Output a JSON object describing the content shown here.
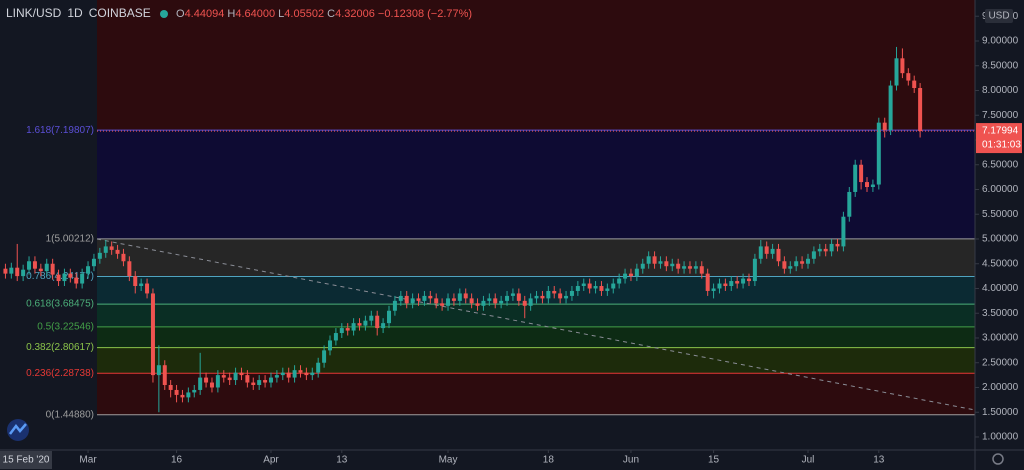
{
  "chart_data": {
    "type": "candlestick",
    "legend": {
      "symbol": "LINK/USD",
      "interval": "1D",
      "exchange": "COINBASE",
      "open_label": "O",
      "open": "4.44094",
      "high_label": "H",
      "high": "4.64000",
      "low_label": "L",
      "low": "4.05502",
      "close_label": "C",
      "close": "4.32006",
      "change": "−0.12308 (−2.77%)"
    },
    "currency": "USD",
    "date_marker": "15 Feb '20",
    "last_price": 7.17994,
    "countdown": "01:31:03",
    "up_color": "#26a69a",
    "down_color": "#ef5350",
    "ylim": [
      0.737,
      9.828
    ],
    "yticks": [
      {
        "value": 1,
        "label": "1.00000"
      },
      {
        "value": 1.5,
        "label": "1.50000"
      },
      {
        "value": 2,
        "label": "2.00000"
      },
      {
        "value": 2.5,
        "label": "2.50000"
      },
      {
        "value": 3,
        "label": "3.00000"
      },
      {
        "value": 3.5,
        "label": "3.50000"
      },
      {
        "value": 4,
        "label": "4.00000"
      },
      {
        "value": 4.5,
        "label": "4.50000"
      },
      {
        "value": 5,
        "label": "5.00000"
      },
      {
        "value": 5.5,
        "label": "5.50000"
      },
      {
        "value": 6,
        "label": "6.00000"
      },
      {
        "value": 6.5,
        "label": "6.50000"
      },
      {
        "value": 7,
        "label": "7.00000"
      },
      {
        "value": 7.5,
        "label": "7.50000"
      },
      {
        "value": 8,
        "label": "8.00000"
      },
      {
        "value": 8.5,
        "label": "8.50000"
      },
      {
        "value": 9,
        "label": "9.00000"
      },
      {
        "value": 9.5,
        "label": "9.50000"
      }
    ],
    "xlim": [
      -0.92,
      164.3
    ],
    "xticks": [
      {
        "value": 14,
        "label": "Mar"
      },
      {
        "value": 29,
        "label": "16"
      },
      {
        "value": 45,
        "label": "Apr"
      },
      {
        "value": 57,
        "label": "13"
      },
      {
        "value": 75,
        "label": "May"
      },
      {
        "value": 92,
        "label": "18"
      },
      {
        "value": 106,
        "label": "Jun"
      },
      {
        "value": 120,
        "label": "15"
      },
      {
        "value": 136,
        "label": "Jul"
      },
      {
        "value": 148,
        "label": "13"
      }
    ],
    "fib_above_fill": "#2d0b0e",
    "fib_levels": [
      {
        "label": "1.618(7.19807)",
        "value": 7.19807,
        "color": "#5b4fd6",
        "fill": "#0e0b33"
      },
      {
        "label": "1(5.00212)",
        "value": 5.00212,
        "color": "#9e9e9e",
        "fill": "#262626"
      },
      {
        "label": "0.786(4.24177)",
        "value": 4.24177,
        "color": "#4fa3c0",
        "fill": "#0b2a33"
      },
      {
        "label": "0.618(3.68475)",
        "value": 3.68475,
        "color": "#4caf7a",
        "fill": "#0a2e24"
      },
      {
        "label": "0.5(3.22546)",
        "value": 3.22546,
        "color": "#43a047",
        "fill": "#0d2b14"
      },
      {
        "label": "0.382(2.80617)",
        "value": 2.80617,
        "color": "#8bc34a",
        "fill": "#1d2b0b"
      },
      {
        "label": "0.236(2.28738)",
        "value": 2.28738,
        "color": "#e53935",
        "fill": "#2d0b0e"
      },
      {
        "label": "0(1.44880)",
        "value": 1.4488,
        "color": "#9e9e9e",
        "fill": null
      }
    ],
    "open": [
      4.4,
      4.3,
      4.42,
      4.25,
      4.38,
      4.55,
      4.4,
      4.35,
      4.5,
      4.28,
      4.15,
      4.3,
      4.22,
      4.1,
      4.3,
      4.45,
      4.6,
      4.72,
      4.85,
      4.78,
      4.7,
      4.55,
      4.25,
      4.05,
      4.1,
      3.9,
      2.25,
      2.45,
      2.05,
      1.95,
      1.85,
      1.8,
      1.9,
      1.95,
      2.2,
      2.1,
      2.0,
      2.25,
      2.2,
      2.15,
      2.3,
      2.25,
      2.1,
      2.05,
      2.15,
      2.1,
      2.2,
      2.25,
      2.3,
      2.2,
      2.35,
      2.3,
      2.25,
      2.3,
      2.5,
      2.75,
      2.95,
      3.1,
      3.2,
      3.15,
      3.3,
      3.25,
      3.35,
      3.45,
      3.2,
      3.3,
      3.55,
      3.75,
      3.85,
      3.7,
      3.8,
      3.75,
      3.85,
      3.8,
      3.7,
      3.65,
      3.8,
      3.75,
      3.9,
      3.8,
      3.7,
      3.65,
      3.75,
      3.8,
      3.7,
      3.75,
      3.85,
      3.9,
      3.75,
      3.65,
      3.8,
      3.85,
      3.8,
      3.95,
      3.9,
      3.8,
      3.85,
      3.95,
      4.05,
      4.1,
      4.0,
      4.05,
      3.95,
      4.0,
      4.1,
      4.2,
      4.3,
      4.25,
      4.4,
      4.5,
      4.65,
      4.5,
      4.55,
      4.45,
      4.5,
      4.4,
      4.45,
      4.4,
      4.45,
      4.3,
      3.95,
      4.0,
      4.1,
      4.05,
      4.15,
      4.1,
      4.2,
      4.15,
      4.6,
      4.85,
      4.7,
      4.8,
      4.55,
      4.4,
      4.45,
      4.55,
      4.5,
      4.6,
      4.75,
      4.8,
      4.75,
      4.9,
      4.85,
      5.45,
      5.95,
      6.5,
      6.15,
      6.05,
      6.1,
      7.35,
      7.2,
      8.1,
      8.65,
      8.35,
      8.2,
      8.05
    ],
    "high": [
      4.5,
      4.52,
      4.9,
      4.48,
      4.65,
      4.65,
      4.5,
      4.6,
      4.6,
      4.38,
      4.4,
      4.4,
      4.32,
      4.4,
      4.55,
      4.7,
      4.82,
      4.98,
      4.95,
      4.88,
      4.8,
      4.65,
      4.35,
      4.2,
      4.2,
      4.0,
      2.85,
      2.55,
      2.15,
      2.05,
      1.95,
      2.0,
      2.05,
      2.7,
      2.3,
      2.2,
      2.35,
      2.35,
      2.3,
      2.4,
      2.4,
      2.35,
      2.2,
      2.25,
      2.25,
      2.3,
      2.35,
      2.4,
      2.4,
      2.45,
      2.45,
      2.4,
      2.4,
      2.6,
      2.85,
      3.05,
      3.2,
      3.3,
      3.3,
      3.4,
      3.4,
      3.45,
      3.55,
      3.55,
      3.4,
      3.65,
      3.85,
      3.95,
      3.95,
      3.9,
      3.9,
      3.95,
      3.95,
      3.9,
      3.8,
      3.9,
      3.9,
      4.0,
      4.0,
      3.9,
      3.8,
      3.85,
      3.9,
      3.9,
      3.85,
      3.95,
      4.0,
      4.0,
      3.85,
      3.9,
      3.95,
      3.95,
      4.05,
      4.05,
      4.0,
      3.95,
      4.05,
      4.15,
      4.2,
      4.2,
      4.15,
      4.15,
      4.1,
      4.2,
      4.3,
      4.4,
      4.4,
      4.5,
      4.6,
      4.75,
      4.75,
      4.65,
      4.65,
      4.6,
      4.6,
      4.55,
      4.55,
      4.55,
      4.55,
      4.4,
      4.1,
      4.2,
      4.2,
      4.25,
      4.25,
      4.3,
      4.3,
      4.7,
      4.98,
      4.95,
      4.9,
      4.9,
      4.65,
      4.55,
      4.65,
      4.65,
      4.7,
      4.85,
      4.9,
      4.9,
      5.0,
      5.0,
      5.55,
      6.05,
      6.6,
      6.6,
      6.25,
      6.2,
      7.45,
      7.45,
      8.2,
      8.88,
      8.85,
      8.45,
      8.3,
      8.15
    ],
    "low": [
      4.2,
      4.2,
      4.15,
      4.15,
      4.28,
      4.3,
      4.25,
      4.25,
      4.18,
      4.05,
      4.05,
      4.12,
      4.0,
      4.0,
      4.2,
      4.35,
      4.5,
      4.62,
      4.68,
      4.6,
      4.45,
      4.15,
      3.9,
      3.95,
      3.8,
      2.1,
      1.5,
      1.95,
      1.8,
      1.7,
      1.7,
      1.7,
      1.8,
      1.85,
      2.0,
      1.9,
      1.9,
      2.1,
      2.05,
      2.05,
      2.15,
      2.0,
      1.95,
      1.95,
      2.0,
      2.0,
      2.1,
      2.15,
      2.1,
      2.1,
      2.2,
      2.15,
      2.15,
      2.2,
      2.4,
      2.65,
      2.85,
      3.0,
      3.05,
      3.05,
      3.15,
      3.15,
      3.25,
      3.05,
      3.1,
      3.2,
      3.45,
      3.65,
      3.6,
      3.6,
      3.65,
      3.65,
      3.7,
      3.6,
      3.55,
      3.55,
      3.65,
      3.65,
      3.7,
      3.6,
      3.55,
      3.55,
      3.65,
      3.6,
      3.6,
      3.65,
      3.75,
      3.65,
      3.4,
      3.55,
      3.7,
      3.7,
      3.7,
      3.8,
      3.7,
      3.7,
      3.75,
      3.85,
      3.95,
      3.9,
      3.9,
      3.85,
      3.85,
      3.9,
      4.0,
      4.1,
      4.15,
      4.15,
      4.3,
      4.4,
      4.4,
      4.4,
      4.35,
      4.35,
      4.3,
      4.3,
      4.3,
      4.3,
      4.2,
      3.85,
      3.8,
      3.9,
      3.95,
      3.95,
      4.0,
      4.0,
      4.05,
      4.05,
      4.5,
      4.6,
      4.6,
      4.45,
      4.3,
      4.3,
      4.35,
      4.4,
      4.4,
      4.5,
      4.65,
      4.65,
      4.65,
      4.75,
      4.75,
      5.35,
      5.85,
      6.0,
      5.95,
      5.95,
      6.0,
      7.05,
      7.1,
      8.0,
      8.25,
      8.1,
      7.95,
      7.05
    ],
    "close": [
      4.3,
      4.42,
      4.25,
      4.38,
      4.55,
      4.4,
      4.35,
      4.5,
      4.28,
      4.15,
      4.3,
      4.22,
      4.1,
      4.3,
      4.45,
      4.6,
      4.72,
      4.85,
      4.78,
      4.7,
      4.55,
      4.25,
      4.05,
      4.1,
      3.9,
      2.25,
      2.45,
      2.05,
      1.95,
      1.85,
      1.8,
      1.9,
      1.95,
      2.2,
      2.1,
      2.0,
      2.25,
      2.2,
      2.15,
      2.3,
      2.25,
      2.1,
      2.05,
      2.15,
      2.1,
      2.2,
      2.25,
      2.3,
      2.2,
      2.35,
      2.3,
      2.25,
      2.3,
      2.5,
      2.75,
      2.95,
      3.1,
      3.2,
      3.15,
      3.3,
      3.25,
      3.35,
      3.45,
      3.2,
      3.3,
      3.55,
      3.75,
      3.85,
      3.7,
      3.8,
      3.75,
      3.85,
      3.8,
      3.7,
      3.65,
      3.8,
      3.75,
      3.9,
      3.8,
      3.7,
      3.65,
      3.75,
      3.8,
      3.7,
      3.75,
      3.85,
      3.9,
      3.75,
      3.65,
      3.8,
      3.85,
      3.8,
      3.95,
      3.9,
      3.8,
      3.85,
      3.95,
      4.05,
      4.1,
      4.0,
      4.05,
      3.95,
      4.0,
      4.1,
      4.2,
      4.3,
      4.25,
      4.4,
      4.5,
      4.65,
      4.5,
      4.55,
      4.45,
      4.5,
      4.4,
      4.45,
      4.4,
      4.45,
      4.3,
      3.95,
      4.0,
      4.1,
      4.05,
      4.15,
      4.1,
      4.2,
      4.15,
      4.6,
      4.85,
      4.7,
      4.8,
      4.55,
      4.4,
      4.45,
      4.55,
      4.5,
      4.6,
      4.75,
      4.8,
      4.75,
      4.9,
      4.85,
      5.45,
      5.95,
      6.5,
      6.15,
      6.05,
      6.1,
      7.35,
      7.2,
      8.1,
      8.65,
      8.35,
      8.2,
      8.05,
      7.18
    ]
  }
}
